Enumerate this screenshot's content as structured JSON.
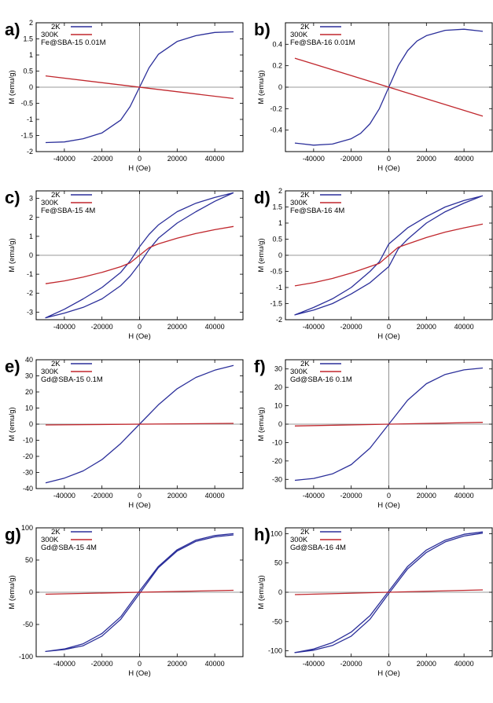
{
  "chart_data": [
    {
      "panel": "a)",
      "type": "line",
      "legend": [
        "2K",
        "300K"
      ],
      "sample": "Fe@SBA-15 0.01M",
      "xlabel": "H (Oe)",
      "ylabel": "M (emu/g)",
      "xlim": [
        -55000,
        55000
      ],
      "ylim": [
        -2,
        2
      ],
      "xticks": [
        {
          "v": -40000,
          "t": "-40000"
        },
        {
          "v": -20000,
          "t": "-20000"
        },
        {
          "v": 0,
          "t": "0"
        },
        {
          "v": 20000,
          "t": "20000"
        },
        {
          "v": 40000,
          "t": "40000"
        }
      ],
      "yticks": [
        {
          "v": -2,
          "t": "-2"
        },
        {
          "v": -1.5,
          "t": "-1.5"
        },
        {
          "v": -1,
          "t": "-1"
        },
        {
          "v": -0.5,
          "t": "-0.5"
        },
        {
          "v": 0,
          "t": "0"
        },
        {
          "v": 0.5,
          "t": "0.5"
        },
        {
          "v": 1,
          "t": "1"
        },
        {
          "v": 1.5,
          "t": "1.5"
        },
        {
          "v": 2,
          "t": "2"
        }
      ],
      "series": [
        {
          "name": "2K",
          "color": "#2b2f9a",
          "x": [
            -50000,
            -40000,
            -30000,
            -20000,
            -10000,
            -5000,
            0,
            5000,
            10000,
            20000,
            30000,
            40000,
            50000
          ],
          "y": [
            -1.72,
            -1.7,
            -1.6,
            -1.42,
            -1.02,
            -0.6,
            0,
            0.6,
            1.02,
            1.42,
            1.6,
            1.7,
            1.72
          ]
        },
        {
          "name": "300K",
          "color": "#c0272d",
          "x": [
            -50000,
            50000
          ],
          "y": [
            0.35,
            -0.35
          ]
        }
      ]
    },
    {
      "panel": "b)",
      "type": "line",
      "legend": [
        "2K",
        "300K"
      ],
      "sample": "Fe@SBA-16 0.01M",
      "xlabel": "H (Oe)",
      "ylabel": "M (emu/g)",
      "xlim": [
        -55000,
        55000
      ],
      "ylim": [
        -0.6,
        0.6
      ],
      "xticks": [
        {
          "v": -40000,
          "t": "-40000"
        },
        {
          "v": -20000,
          "t": "-20000"
        },
        {
          "v": 0,
          "t": "0"
        },
        {
          "v": 20000,
          "t": "20000"
        },
        {
          "v": 40000,
          "t": "40000"
        }
      ],
      "yticks": [
        {
          "v": -0.4,
          "t": "-0.4"
        },
        {
          "v": -0.2,
          "t": "-0.2"
        },
        {
          "v": 0,
          "t": "0"
        },
        {
          "v": 0.2,
          "t": "0.2"
        },
        {
          "v": 0.4,
          "t": "0.4"
        }
      ],
      "series": [
        {
          "name": "2K",
          "color": "#2b2f9a",
          "x": [
            -50000,
            -40000,
            -30000,
            -20000,
            -15000,
            -10000,
            -5000,
            0,
            5000,
            10000,
            15000,
            20000,
            30000,
            40000,
            50000
          ],
          "y": [
            -0.52,
            -0.54,
            -0.53,
            -0.48,
            -0.43,
            -0.34,
            -0.2,
            0,
            0.2,
            0.34,
            0.43,
            0.48,
            0.53,
            0.54,
            0.52
          ]
        },
        {
          "name": "300K",
          "color": "#c0272d",
          "x": [
            -50000,
            50000
          ],
          "y": [
            0.27,
            -0.27
          ]
        }
      ]
    },
    {
      "panel": "c)",
      "type": "line",
      "legend": [
        "2K",
        "300K"
      ],
      "sample": "Fe@SBA-15 4M",
      "xlabel": "H (Oe)",
      "ylabel": "M (emu/g)",
      "xlim": [
        -55000,
        55000
      ],
      "ylim": [
        -3.4,
        3.4
      ],
      "xticks": [
        {
          "v": -40000,
          "t": "-40000"
        },
        {
          "v": -20000,
          "t": "-20000"
        },
        {
          "v": 0,
          "t": "0"
        },
        {
          "v": 20000,
          "t": "20000"
        },
        {
          "v": 40000,
          "t": "40000"
        }
      ],
      "yticks": [
        {
          "v": -3,
          "t": "-3"
        },
        {
          "v": -2,
          "t": "-2"
        },
        {
          "v": -1,
          "t": "-1"
        },
        {
          "v": 0,
          "t": "0"
        },
        {
          "v": 1,
          "t": "1"
        },
        {
          "v": 2,
          "t": "2"
        },
        {
          "v": 3,
          "t": "3"
        }
      ],
      "series": [
        {
          "name": "2K",
          "color": "#2b2f9a",
          "x": [
            50000,
            40000,
            30000,
            20000,
            10000,
            5000,
            0,
            -5000,
            -10000,
            -20000,
            -30000,
            -40000,
            -50000,
            -40000,
            -30000,
            -20000,
            -10000,
            -5000,
            0,
            5000,
            10000,
            20000,
            30000,
            40000,
            50000
          ],
          "y": [
            3.3,
            3.05,
            2.75,
            2.3,
            1.6,
            1.1,
            0.45,
            -0.3,
            -0.9,
            -1.7,
            -2.3,
            -2.85,
            -3.3,
            -3.05,
            -2.75,
            -2.3,
            -1.6,
            -1.1,
            -0.45,
            0.3,
            0.9,
            1.7,
            2.3,
            2.85,
            3.3
          ]
        },
        {
          "name": "300K",
          "color": "#c0272d",
          "x": [
            -50000,
            -40000,
            -30000,
            -20000,
            -10000,
            -5000,
            0,
            5000,
            10000,
            20000,
            30000,
            40000,
            50000
          ],
          "y": [
            -1.5,
            -1.35,
            -1.15,
            -0.9,
            -0.6,
            -0.4,
            0,
            0.4,
            0.6,
            0.9,
            1.15,
            1.35,
            1.52
          ]
        }
      ]
    },
    {
      "panel": "d)",
      "type": "line",
      "legend": [
        "2K",
        "300K"
      ],
      "sample": "Fe@SBA-16 4M",
      "xlabel": "H (Oe)",
      "ylabel": "M (emu/g)",
      "xlim": [
        -55000,
        55000
      ],
      "ylim": [
        -2,
        2
      ],
      "xticks": [
        {
          "v": -40000,
          "t": "-40000"
        },
        {
          "v": -20000,
          "t": "-20000"
        },
        {
          "v": 0,
          "t": "0"
        },
        {
          "v": 20000,
          "t": "20000"
        },
        {
          "v": 40000,
          "t": "40000"
        }
      ],
      "yticks": [
        {
          "v": -2,
          "t": "-2"
        },
        {
          "v": -1.5,
          "t": "-1.5"
        },
        {
          "v": -1,
          "t": "-1"
        },
        {
          "v": -0.5,
          "t": "-0.5"
        },
        {
          "v": 0,
          "t": "0"
        },
        {
          "v": 0.5,
          "t": "0.5"
        },
        {
          "v": 1,
          "t": "1"
        },
        {
          "v": 1.5,
          "t": "1.5"
        },
        {
          "v": 2,
          "t": "2"
        }
      ],
      "series": [
        {
          "name": "2K",
          "color": "#2b2f9a",
          "x": [
            50000,
            40000,
            30000,
            20000,
            10000,
            5000,
            0,
            -5000,
            -10000,
            -20000,
            -30000,
            -40000,
            -50000,
            -40000,
            -30000,
            -20000,
            -10000,
            -5000,
            0,
            5000,
            10000,
            20000,
            30000,
            40000,
            50000
          ],
          "y": [
            1.85,
            1.7,
            1.5,
            1.2,
            0.85,
            0.6,
            0.35,
            -0.2,
            -0.5,
            -1.0,
            -1.35,
            -1.62,
            -1.85,
            -1.7,
            -1.5,
            -1.2,
            -0.85,
            -0.6,
            -0.35,
            0.2,
            0.5,
            1.0,
            1.35,
            1.62,
            1.85
          ]
        },
        {
          "name": "300K",
          "color": "#c0272d",
          "x": [
            -50000,
            -40000,
            -30000,
            -20000,
            -10000,
            -5000,
            0,
            5000,
            10000,
            20000,
            30000,
            40000,
            50000
          ],
          "y": [
            -0.95,
            -0.85,
            -0.72,
            -0.55,
            -0.35,
            -0.25,
            0,
            0.25,
            0.35,
            0.55,
            0.72,
            0.85,
            0.97
          ]
        }
      ]
    },
    {
      "panel": "e)",
      "type": "line",
      "legend": [
        "2K",
        "300K"
      ],
      "sample": "Gd@SBA-15 0.1M",
      "xlabel": "H (Oe)",
      "ylabel": "M (emu/g)",
      "xlim": [
        -55000,
        55000
      ],
      "ylim": [
        -40,
        40
      ],
      "xticks": [
        {
          "v": -40000,
          "t": "-40000"
        },
        {
          "v": -20000,
          "t": "-20000"
        },
        {
          "v": 0,
          "t": "0"
        },
        {
          "v": 20000,
          "t": "20000"
        },
        {
          "v": 40000,
          "t": "40000"
        }
      ],
      "yticks": [
        {
          "v": -40,
          "t": "-40"
        },
        {
          "v": -30,
          "t": "-30"
        },
        {
          "v": -20,
          "t": "-20"
        },
        {
          "v": -10,
          "t": "-10"
        },
        {
          "v": 0,
          "t": "0"
        },
        {
          "v": 10,
          "t": "10"
        },
        {
          "v": 20,
          "t": "20"
        },
        {
          "v": 30,
          "t": "30"
        },
        {
          "v": 40,
          "t": "40"
        }
      ],
      "series": [
        {
          "name": "2K",
          "color": "#2b2f9a",
          "x": [
            -50000,
            -40000,
            -30000,
            -20000,
            -10000,
            0,
            10000,
            20000,
            30000,
            40000,
            50000
          ],
          "y": [
            -36.5,
            -33.5,
            -29,
            -22,
            -12,
            0,
            12,
            22,
            29,
            33.5,
            36.5
          ]
        },
        {
          "name": "300K",
          "color": "#c0272d",
          "x": [
            -50000,
            50000
          ],
          "y": [
            -0.5,
            0.5
          ]
        }
      ]
    },
    {
      "panel": "f)",
      "type": "line",
      "legend": [
        "2K",
        "300K"
      ],
      "sample": "Gd@SBA-16 0.1M",
      "xlabel": "H (Oe)",
      "ylabel": "M (emu/g)",
      "xlim": [
        -55000,
        55000
      ],
      "ylim": [
        -35,
        35
      ],
      "xticks": [
        {
          "v": -40000,
          "t": "-40000"
        },
        {
          "v": -20000,
          "t": "-20000"
        },
        {
          "v": 0,
          "t": "0"
        },
        {
          "v": 20000,
          "t": "20000"
        },
        {
          "v": 40000,
          "t": "40000"
        }
      ],
      "yticks": [
        {
          "v": -30,
          "t": "-30"
        },
        {
          "v": -20,
          "t": "-20"
        },
        {
          "v": -10,
          "t": "-10"
        },
        {
          "v": 0,
          "t": "0"
        },
        {
          "v": 10,
          "t": "10"
        },
        {
          "v": 20,
          "t": "20"
        },
        {
          "v": 30,
          "t": "30"
        }
      ],
      "series": [
        {
          "name": "2K",
          "color": "#2b2f9a",
          "x": [
            -50000,
            -40000,
            -30000,
            -20000,
            -10000,
            0,
            10000,
            20000,
            30000,
            40000,
            50000
          ],
          "y": [
            -30.5,
            -29.5,
            -27,
            -22,
            -13,
            0,
            13,
            22,
            27,
            29.5,
            30.5
          ]
        },
        {
          "name": "300K",
          "color": "#c0272d",
          "x": [
            -50000,
            50000
          ],
          "y": [
            -1,
            1
          ]
        }
      ]
    },
    {
      "panel": "g)",
      "type": "line",
      "legend": [
        "2K",
        "300K"
      ],
      "sample": "Gd@SBA-15 4M",
      "xlabel": "H (Oe)",
      "ylabel": "M (emu/g)",
      "xlim": [
        -55000,
        55000
      ],
      "ylim": [
        -100,
        100
      ],
      "xticks": [
        {
          "v": -40000,
          "t": "-40000"
        },
        {
          "v": -20000,
          "t": "-20000"
        },
        {
          "v": 0,
          "t": "0"
        },
        {
          "v": 20000,
          "t": "20000"
        },
        {
          "v": 40000,
          "t": "40000"
        }
      ],
      "yticks": [
        {
          "v": -100,
          "t": "-100"
        },
        {
          "v": -50,
          "t": "-50"
        },
        {
          "v": 0,
          "t": "0"
        },
        {
          "v": 50,
          "t": "50"
        },
        {
          "v": 100,
          "t": "100"
        }
      ],
      "series": [
        {
          "name": "2K",
          "color": "#2b2f9a",
          "x": [
            50000,
            40000,
            30000,
            20000,
            10000,
            0,
            -10000,
            -20000,
            -30000,
            -40000,
            -50000,
            -40000,
            -30000,
            -20000,
            -10000,
            0,
            10000,
            20000,
            30000,
            40000,
            50000
          ],
          "y": [
            91,
            88,
            81,
            66,
            40,
            2,
            -38,
            -64,
            -80,
            -88,
            -92,
            -89,
            -83,
            -68,
            -42,
            -2,
            38,
            64,
            79,
            86,
            89
          ]
        },
        {
          "name": "300K",
          "color": "#c0272d",
          "x": [
            -50000,
            50000
          ],
          "y": [
            -3,
            3
          ]
        }
      ]
    },
    {
      "panel": "h)",
      "type": "line",
      "legend": [
        "2K",
        "300K"
      ],
      "sample": "Gd@SBA-16 4M",
      "xlabel": "H (Oe)",
      "ylabel": "M (emu/g)",
      "xlim": [
        -55000,
        55000
      ],
      "ylim": [
        -110,
        110
      ],
      "xticks": [
        {
          "v": -40000,
          "t": "-40000"
        },
        {
          "v": -20000,
          "t": "-20000"
        },
        {
          "v": 0,
          "t": "0"
        },
        {
          "v": 20000,
          "t": "20000"
        },
        {
          "v": 40000,
          "t": "40000"
        }
      ],
      "yticks": [
        {
          "v": -100,
          "t": "-100"
        },
        {
          "v": -50,
          "t": "-50"
        },
        {
          "v": 0,
          "t": "0"
        },
        {
          "v": 50,
          "t": "50"
        },
        {
          "v": 100,
          "t": "100"
        }
      ],
      "series": [
        {
          "name": "2K",
          "color": "#2b2f9a",
          "x": [
            50000,
            40000,
            30000,
            20000,
            10000,
            0,
            -10000,
            -20000,
            -30000,
            -40000,
            -50000,
            -40000,
            -30000,
            -20000,
            -10000,
            0,
            10000,
            20000,
            30000,
            40000,
            50000
          ],
          "y": [
            103,
            99,
            89,
            72,
            44,
            2,
            -40,
            -68,
            -86,
            -97,
            -103,
            -99,
            -91,
            -75,
            -46,
            -2,
            40,
            68,
            86,
            96,
            101
          ]
        },
        {
          "name": "300K",
          "color": "#c0272d",
          "x": [
            -50000,
            50000
          ],
          "y": [
            -4,
            4
          ]
        }
      ]
    }
  ]
}
